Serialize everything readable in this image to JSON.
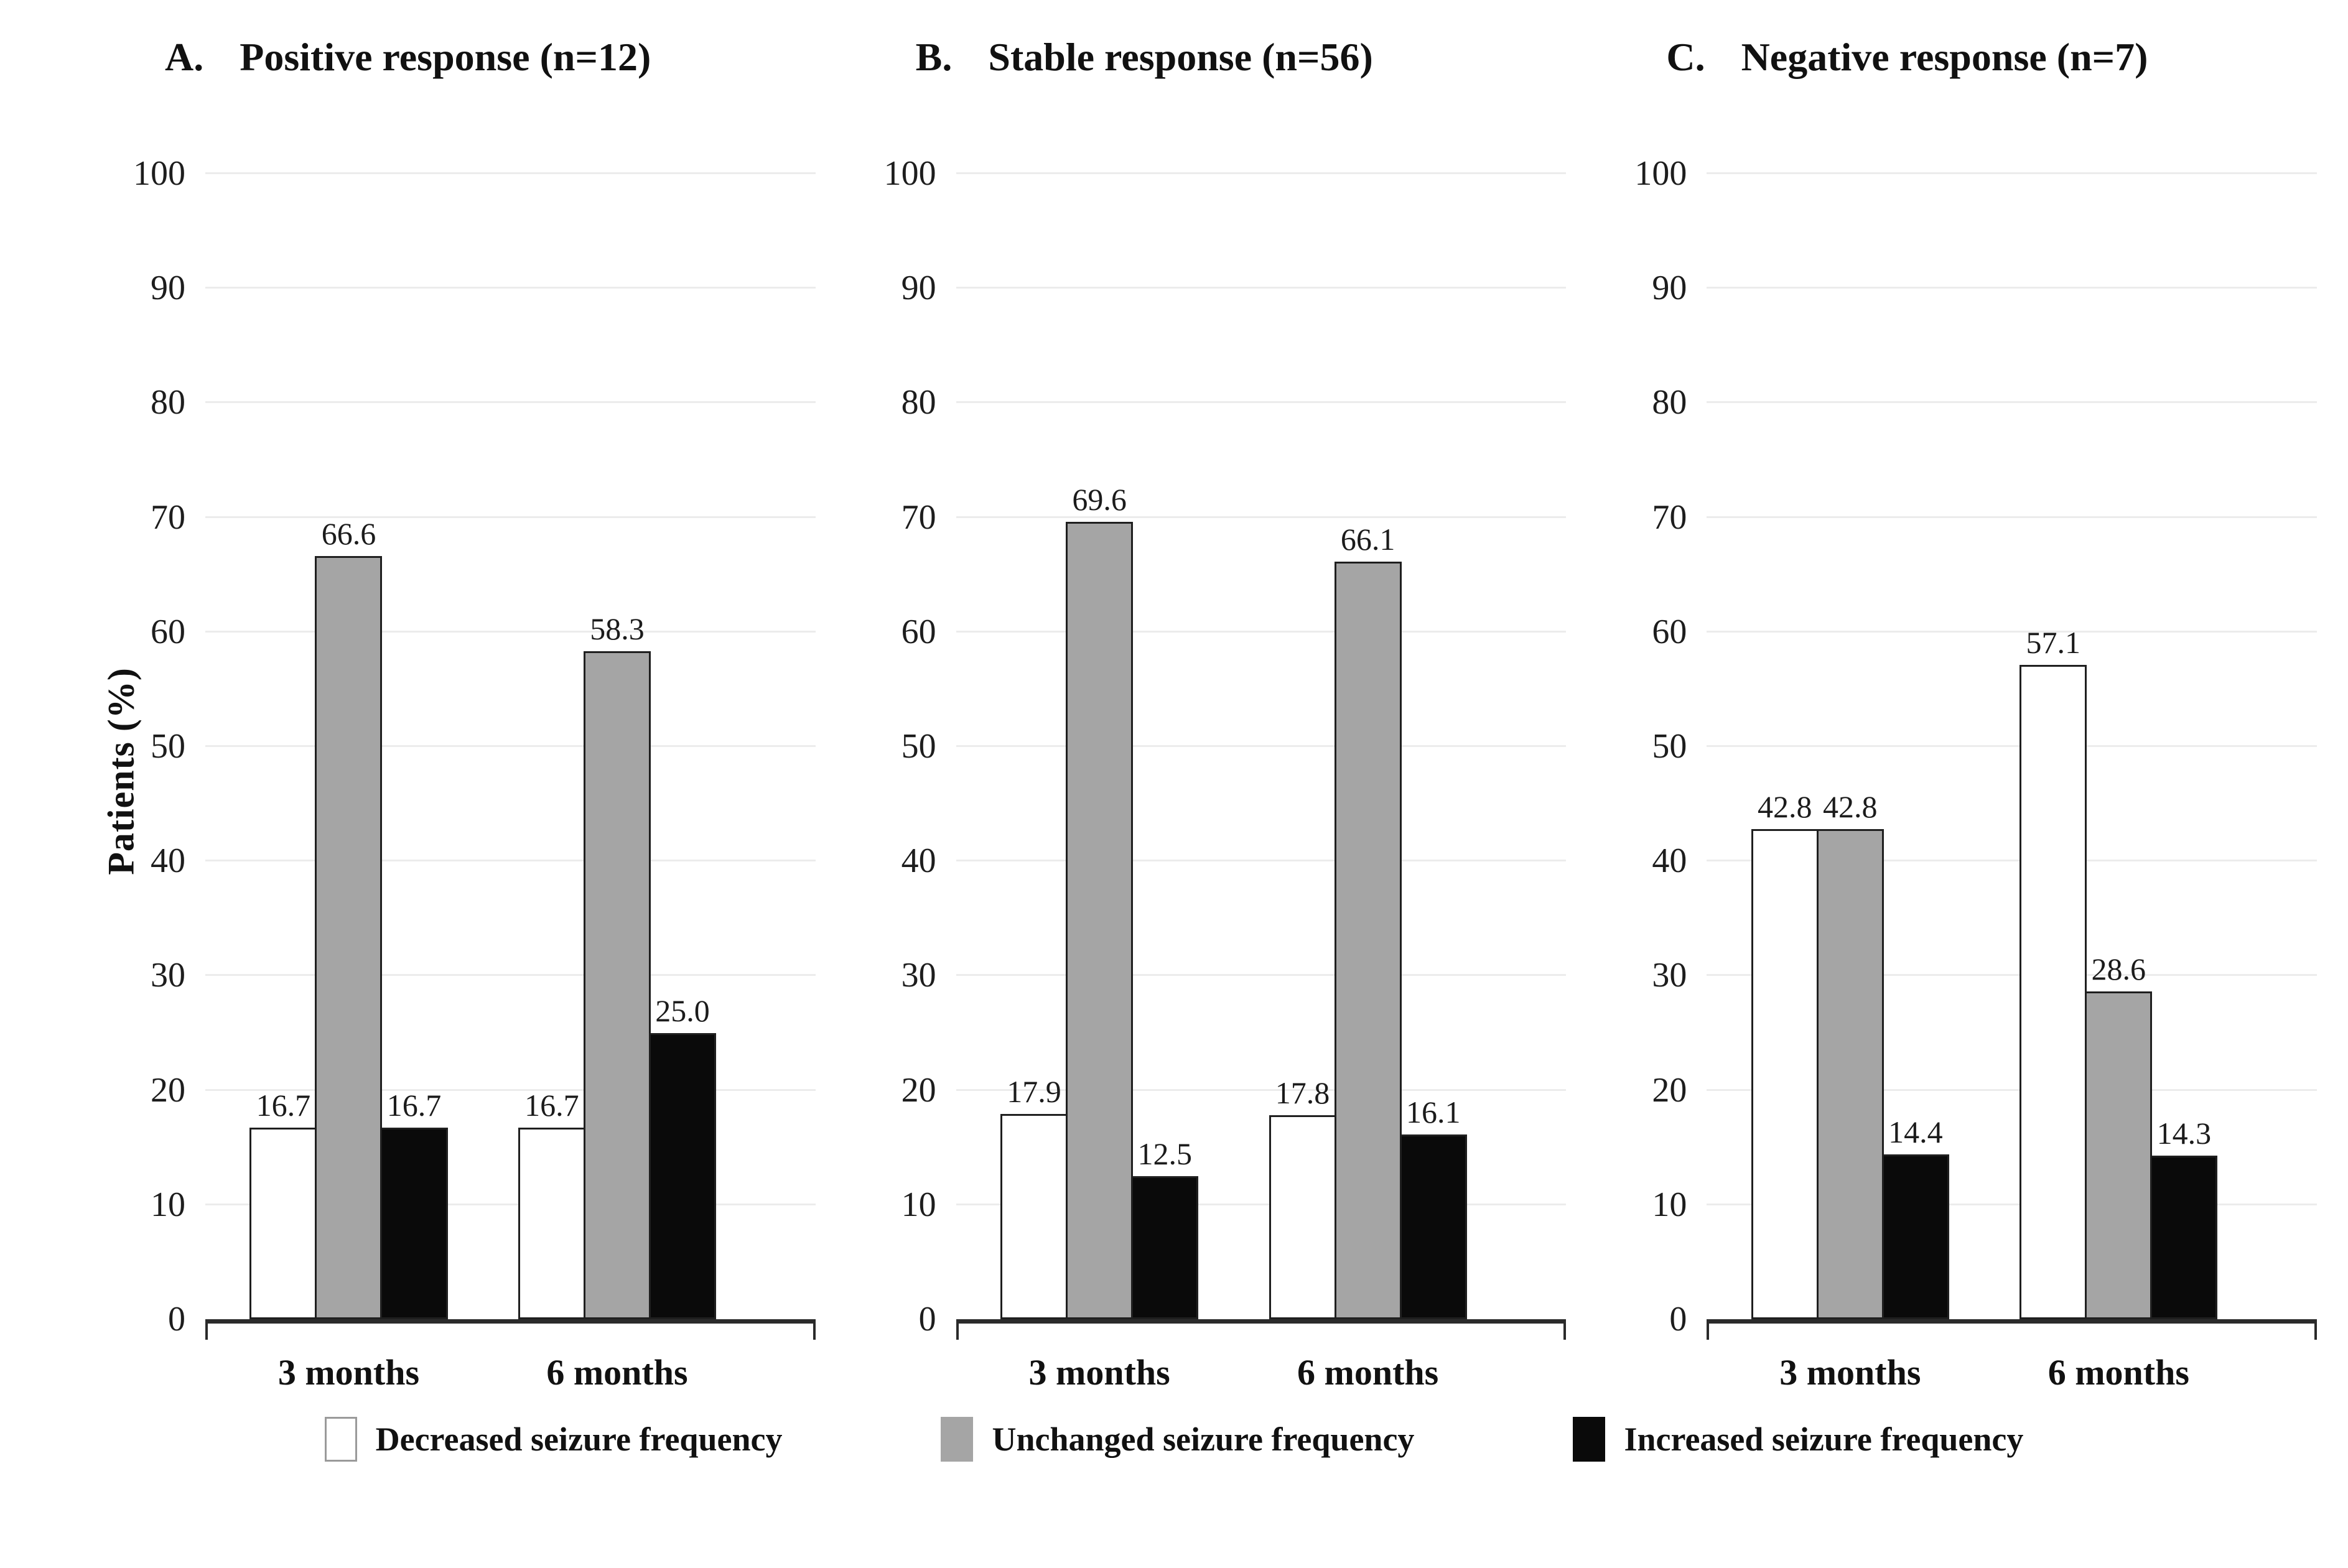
{
  "figure": {
    "y_axis_title": "Patients (%)",
    "y_ticks": [
      100,
      90,
      80,
      70,
      60,
      50,
      40,
      30,
      20,
      10,
      0
    ],
    "x_categories": [
      "3 months",
      "6 months"
    ]
  },
  "legend": {
    "items": [
      {
        "label": "Decreased seizure frequency",
        "color": "#ffffff"
      },
      {
        "label": "Unchanged seizure frequency",
        "color": "#a5a5a5"
      },
      {
        "label": "Increased seizure frequency",
        "color": "#0a0a0a"
      }
    ]
  },
  "chart_data": [
    {
      "type": "bar",
      "panel_label": "A.",
      "title": "Positive response (n=12)",
      "categories": [
        "3 months",
        "6 months"
      ],
      "series": [
        {
          "name": "Decreased seizure frequency",
          "color": "#ffffff",
          "values": [
            16.7,
            16.7
          ]
        },
        {
          "name": "Unchanged seizure frequency",
          "color": "#a5a5a5",
          "values": [
            66.6,
            58.3
          ]
        },
        {
          "name": "Increased seizure frequency",
          "color": "#0a0a0a",
          "values": [
            16.7,
            25.0
          ]
        }
      ],
      "ylabel": "Patients (%)",
      "ylim": [
        0,
        100
      ],
      "ytick_step": 10,
      "grid": true,
      "value_labels": true,
      "legend_position": "bottom"
    },
    {
      "type": "bar",
      "panel_label": "B.",
      "title": "Stable response (n=56)",
      "categories": [
        "3 months",
        "6 months"
      ],
      "series": [
        {
          "name": "Decreased seizure frequency",
          "color": "#ffffff",
          "values": [
            17.9,
            17.8
          ]
        },
        {
          "name": "Unchanged seizure frequency",
          "color": "#a5a5a5",
          "values": [
            69.6,
            66.1
          ]
        },
        {
          "name": "Increased seizure frequency",
          "color": "#0a0a0a",
          "values": [
            12.5,
            16.1
          ]
        }
      ],
      "ylabel": "Patients (%)",
      "ylim": [
        0,
        100
      ],
      "ytick_step": 10,
      "grid": true,
      "value_labels": true,
      "legend_position": "bottom"
    },
    {
      "type": "bar",
      "panel_label": "C.",
      "title": "Negative response (n=7)",
      "categories": [
        "3 months",
        "6 months"
      ],
      "series": [
        {
          "name": "Decreased seizure frequency",
          "color": "#ffffff",
          "values": [
            42.8,
            57.1
          ]
        },
        {
          "name": "Unchanged seizure frequency",
          "color": "#a5a5a5",
          "values": [
            42.8,
            28.6
          ]
        },
        {
          "name": "Increased seizure frequency",
          "color": "#0a0a0a",
          "values": [
            14.4,
            14.3
          ]
        }
      ],
      "ylabel": "Patients (%)",
      "ylim": [
        0,
        100
      ],
      "ytick_step": 10,
      "grid": true,
      "value_labels": true,
      "legend_position": "bottom"
    }
  ]
}
